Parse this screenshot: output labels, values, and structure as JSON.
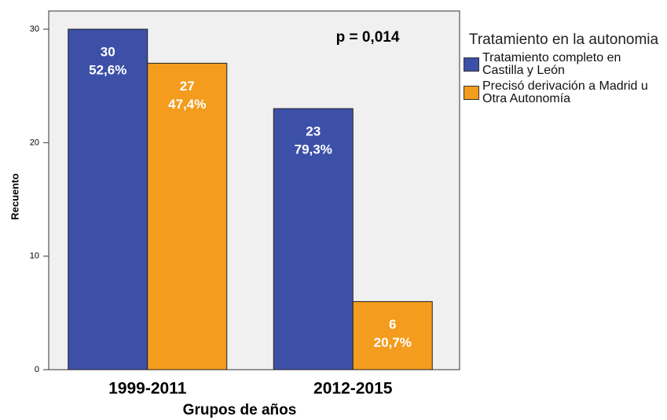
{
  "chart_data": {
    "type": "bar",
    "annotation": "p = 0,014",
    "x_label": "Grupos de años",
    "y_label": "Recuento",
    "legend_title": "Tratamiento en la autonomia",
    "categories": [
      "1999-2011",
      "2012-2015"
    ],
    "series": [
      {
        "name": "Tratamiento completo en Castilla y León",
        "color": "#3c50a8",
        "values": [
          30,
          23
        ],
        "percent_labels": [
          "52,6%",
          "79,3%"
        ]
      },
      {
        "name": "Precisó derivación a Madrid u Otra Autonomía",
        "color": "#f39c1d",
        "values": [
          27,
          6
        ],
        "percent_labels": [
          "47,4%",
          "20,7%"
        ]
      }
    ],
    "ylim": [
      0,
      31.6
    ],
    "yticks": [
      0,
      10,
      20,
      30
    ],
    "grid": false,
    "legend": "right"
  }
}
